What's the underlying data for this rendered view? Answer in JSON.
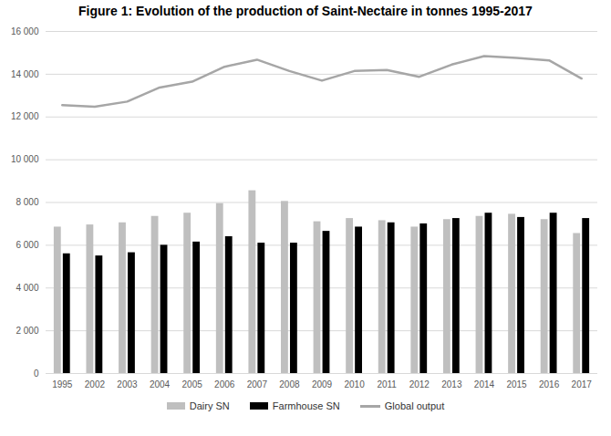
{
  "chart_data": {
    "type": "bar",
    "title": "Figure 1: Evolution of the production of Saint-Nectaire in tonnes 1995-2017",
    "categories": [
      "1995",
      "2002",
      "2003",
      "2004",
      "2005",
      "2006",
      "2007",
      "2008",
      "2009",
      "2010",
      "2011",
      "2012",
      "2013",
      "2014",
      "2015",
      "2016",
      "2017"
    ],
    "series": [
      {
        "name": "Dairy SN",
        "type": "bar",
        "color": "#bfbfbf",
        "values": [
          6850,
          6950,
          7050,
          7350,
          7500,
          7950,
          8550,
          8050,
          7100,
          7250,
          7150,
          6850,
          7200,
          7350,
          7450,
          7200,
          6550
        ]
      },
      {
        "name": "Farmhouse SN",
        "type": "bar",
        "color": "#000000",
        "values": [
          5600,
          5500,
          5650,
          6000,
          6150,
          6400,
          6100,
          6100,
          6650,
          6850,
          7050,
          7000,
          7250,
          7500,
          7300,
          7500,
          7250
        ]
      },
      {
        "name": "Global output",
        "type": "line",
        "color": "#a6a6a6",
        "values": [
          12550,
          12480,
          12720,
          13380,
          13650,
          14350,
          14680,
          14150,
          13700,
          14150,
          14200,
          13880,
          14450,
          14850,
          14760,
          14650,
          13800
        ]
      }
    ],
    "ylim": [
      0,
      16000
    ],
    "yticks": [
      0,
      {
        "value": 2000,
        "label": "2 000"
      },
      {
        "value": 4000,
        "label": "4 000"
      },
      {
        "value": 6000,
        "label": "6 000"
      },
      {
        "value": 8000,
        "label": "8 000"
      },
      {
        "value": 10000,
        "label": "10 000"
      },
      {
        "value": 12000,
        "label": "12 000"
      },
      {
        "value": 14000,
        "label": "14 000"
      },
      {
        "value": 16000,
        "label": "16 000"
      }
    ],
    "grid": true,
    "legend": "bottom"
  }
}
